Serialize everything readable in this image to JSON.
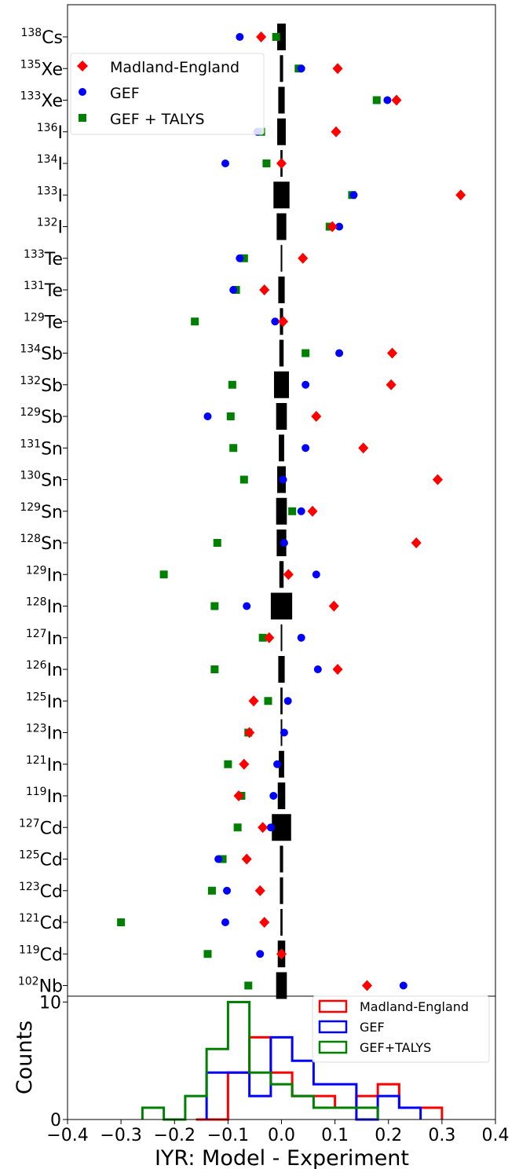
{
  "chart_data": [
    {
      "type": "scatter",
      "xlim": [
        -0.4,
        0.4
      ],
      "grid": false,
      "legend_position": "top-left",
      "isotopes": [
        {
          "mass": "138",
          "el": "Cs"
        },
        {
          "mass": "135",
          "el": "Xe"
        },
        {
          "mass": "133",
          "el": "Xe"
        },
        {
          "mass": "136",
          "el": "I"
        },
        {
          "mass": "134",
          "el": "I"
        },
        {
          "mass": "133",
          "el": "I"
        },
        {
          "mass": "132",
          "el": "I"
        },
        {
          "mass": "133",
          "el": "Te"
        },
        {
          "mass": "131",
          "el": "Te"
        },
        {
          "mass": "129",
          "el": "Te"
        },
        {
          "mass": "134",
          "el": "Sb"
        },
        {
          "mass": "132",
          "el": "Sb"
        },
        {
          "mass": "129",
          "el": "Sb"
        },
        {
          "mass": "131",
          "el": "Sn"
        },
        {
          "mass": "130",
          "el": "Sn"
        },
        {
          "mass": "129",
          "el": "Sn"
        },
        {
          "mass": "128",
          "el": "Sn"
        },
        {
          "mass": "129",
          "el": "In"
        },
        {
          "mass": "128",
          "el": "In"
        },
        {
          "mass": "127",
          "el": "In"
        },
        {
          "mass": "126",
          "el": "In"
        },
        {
          "mass": "125",
          "el": "In"
        },
        {
          "mass": "123",
          "el": "In"
        },
        {
          "mass": "121",
          "el": "In"
        },
        {
          "mass": "119",
          "el": "In"
        },
        {
          "mass": "127",
          "el": "Cd"
        },
        {
          "mass": "125",
          "el": "Cd"
        },
        {
          "mass": "123",
          "el": "Cd"
        },
        {
          "mass": "121",
          "el": "Cd"
        },
        {
          "mass": "119",
          "el": "Cd"
        },
        {
          "mass": "102",
          "el": "Nb"
        }
      ],
      "uncertainty": [
        0.008,
        0.003,
        0.006,
        0.008,
        0.002,
        0.015,
        0.009,
        0.001,
        0.006,
        0.003,
        0.004,
        0.014,
        0.01,
        0.005,
        0.008,
        0.01,
        0.009,
        0.004,
        0.02,
        0.001,
        0.006,
        0.002,
        0.001,
        0.005,
        0.007,
        0.018,
        0.003,
        0.003,
        0.002,
        0.007,
        0.01
      ],
      "series": [
        {
          "name": "Madland-England",
          "marker": "diamond",
          "color": "#ff0000",
          "values": [
            -0.038,
            0.105,
            0.215,
            0.102,
            0.0,
            0.335,
            0.095,
            0.04,
            -0.032,
            0.003,
            0.207,
            0.205,
            0.065,
            0.153,
            0.292,
            0.058,
            0.252,
            0.013,
            0.098,
            -0.023,
            0.105,
            -0.052,
            -0.06,
            -0.07,
            -0.08,
            -0.035,
            -0.065,
            -0.04,
            -0.032,
            0.0,
            0.16
          ]
        },
        {
          "name": "GEF",
          "marker": "circle",
          "color": "#0000ff",
          "values": [
            -0.078,
            0.037,
            0.198,
            -0.045,
            -0.105,
            0.135,
            0.108,
            -0.078,
            -0.09,
            -0.012,
            0.108,
            0.045,
            -0.138,
            0.045,
            0.003,
            0.037,
            0.005,
            0.065,
            -0.065,
            0.037,
            0.068,
            0.012,
            0.005,
            -0.008,
            -0.015,
            -0.02,
            -0.118,
            -0.102,
            -0.105,
            -0.04,
            0.228
          ]
        },
        {
          "name": "GEF + TALYS",
          "marker": "square",
          "color": "#008000",
          "values": [
            -0.01,
            0.032,
            0.178,
            -0.038,
            -0.028,
            0.132,
            0.09,
            -0.07,
            -0.085,
            -0.162,
            0.045,
            -0.092,
            -0.095,
            -0.09,
            -0.07,
            0.02,
            -0.12,
            -0.22,
            -0.125,
            -0.035,
            -0.125,
            -0.025,
            -0.062,
            -0.1,
            -0.075,
            -0.082,
            -0.11,
            -0.13,
            -0.3,
            -0.138,
            -0.062
          ]
        }
      ]
    },
    {
      "type": "histogram",
      "xlim": [
        -0.4,
        0.4
      ],
      "ylim": [
        0,
        10.5
      ],
      "legend_position": "top-right",
      "xlabel": "IYR: Model - Experiment",
      "ylabel": "Counts",
      "xticks": [
        "−0.4",
        "−0.3",
        "−0.2",
        "−0.1",
        "0.0",
        "0.1",
        "0.2",
        "0.3",
        "0.4"
      ],
      "yticks": [
        "0",
        "10"
      ],
      "series": [
        {
          "name": "Madland-England",
          "color": "#ff0000",
          "edges": [
            -0.16,
            -0.1,
            -0.06,
            -0.02,
            0.02,
            0.06,
            0.1,
            0.14,
            0.18,
            0.22,
            0.26,
            0.3
          ],
          "counts": [
            0,
            4,
            7,
            4,
            2,
            2,
            1,
            2,
            3,
            1,
            1
          ]
        },
        {
          "name": "GEF",
          "color": "#0000ff",
          "edges": [
            -0.14,
            -0.1,
            -0.06,
            -0.02,
            0.02,
            0.06,
            0.1,
            0.14,
            0.18,
            0.22,
            0.26
          ],
          "counts": [
            4,
            4,
            2,
            7,
            5,
            3,
            3,
            0,
            2,
            1
          ]
        },
        {
          "name": "GEF+TALYS",
          "color": "#008000",
          "edges": [
            -0.26,
            -0.22,
            -0.18,
            -0.14,
            -0.1,
            -0.06,
            -0.02,
            0.02,
            0.06,
            0.1,
            0.14,
            0.18
          ],
          "counts": [
            1,
            0,
            2,
            6,
            10,
            4,
            3,
            2,
            1,
            1,
            1
          ]
        }
      ]
    }
  ]
}
